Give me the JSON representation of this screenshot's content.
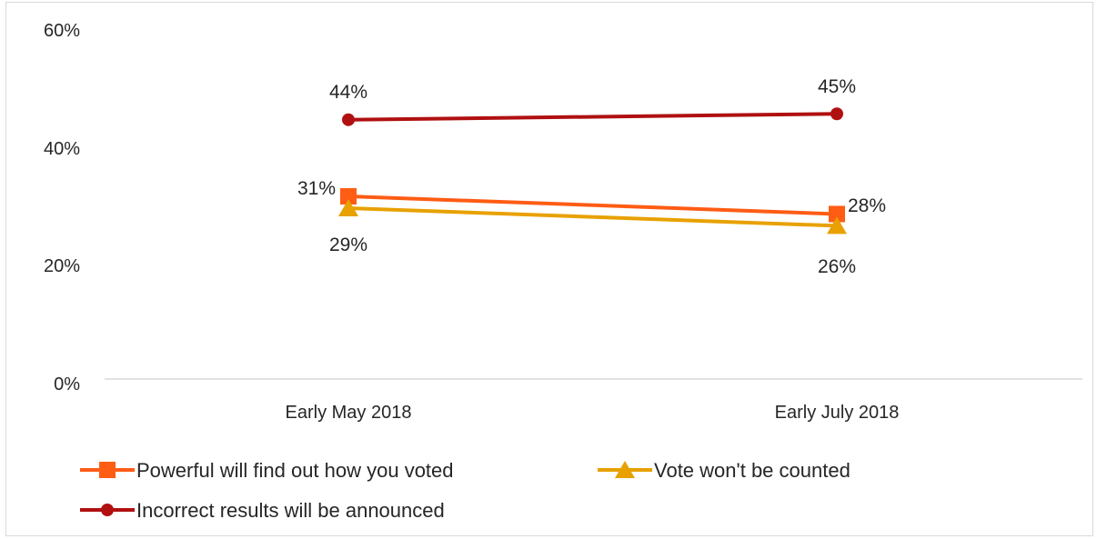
{
  "chart_data": {
    "type": "line",
    "categories": [
      "Early May 2018",
      "Early July 2018"
    ],
    "yticks": [
      "0%",
      "20%",
      "40%",
      "60%"
    ],
    "ylim": [
      0,
      60
    ],
    "legend_position": "bottom",
    "grid": false,
    "series": [
      {
        "name": "Powerful will find out how you voted",
        "values": [
          31,
          28
        ],
        "labels": [
          "31%",
          "28%"
        ],
        "color": "#ff5c14",
        "marker": "square"
      },
      {
        "name": "Vote won't be counted",
        "values": [
          29,
          26
        ],
        "labels": [
          "29%",
          "26%"
        ],
        "color": "#e8a100",
        "marker": "triangle"
      },
      {
        "name": "Incorrect results will be announced",
        "values": [
          44,
          45
        ],
        "labels": [
          "44%",
          "45%"
        ],
        "color": "#b01010",
        "marker": "circle"
      }
    ]
  }
}
